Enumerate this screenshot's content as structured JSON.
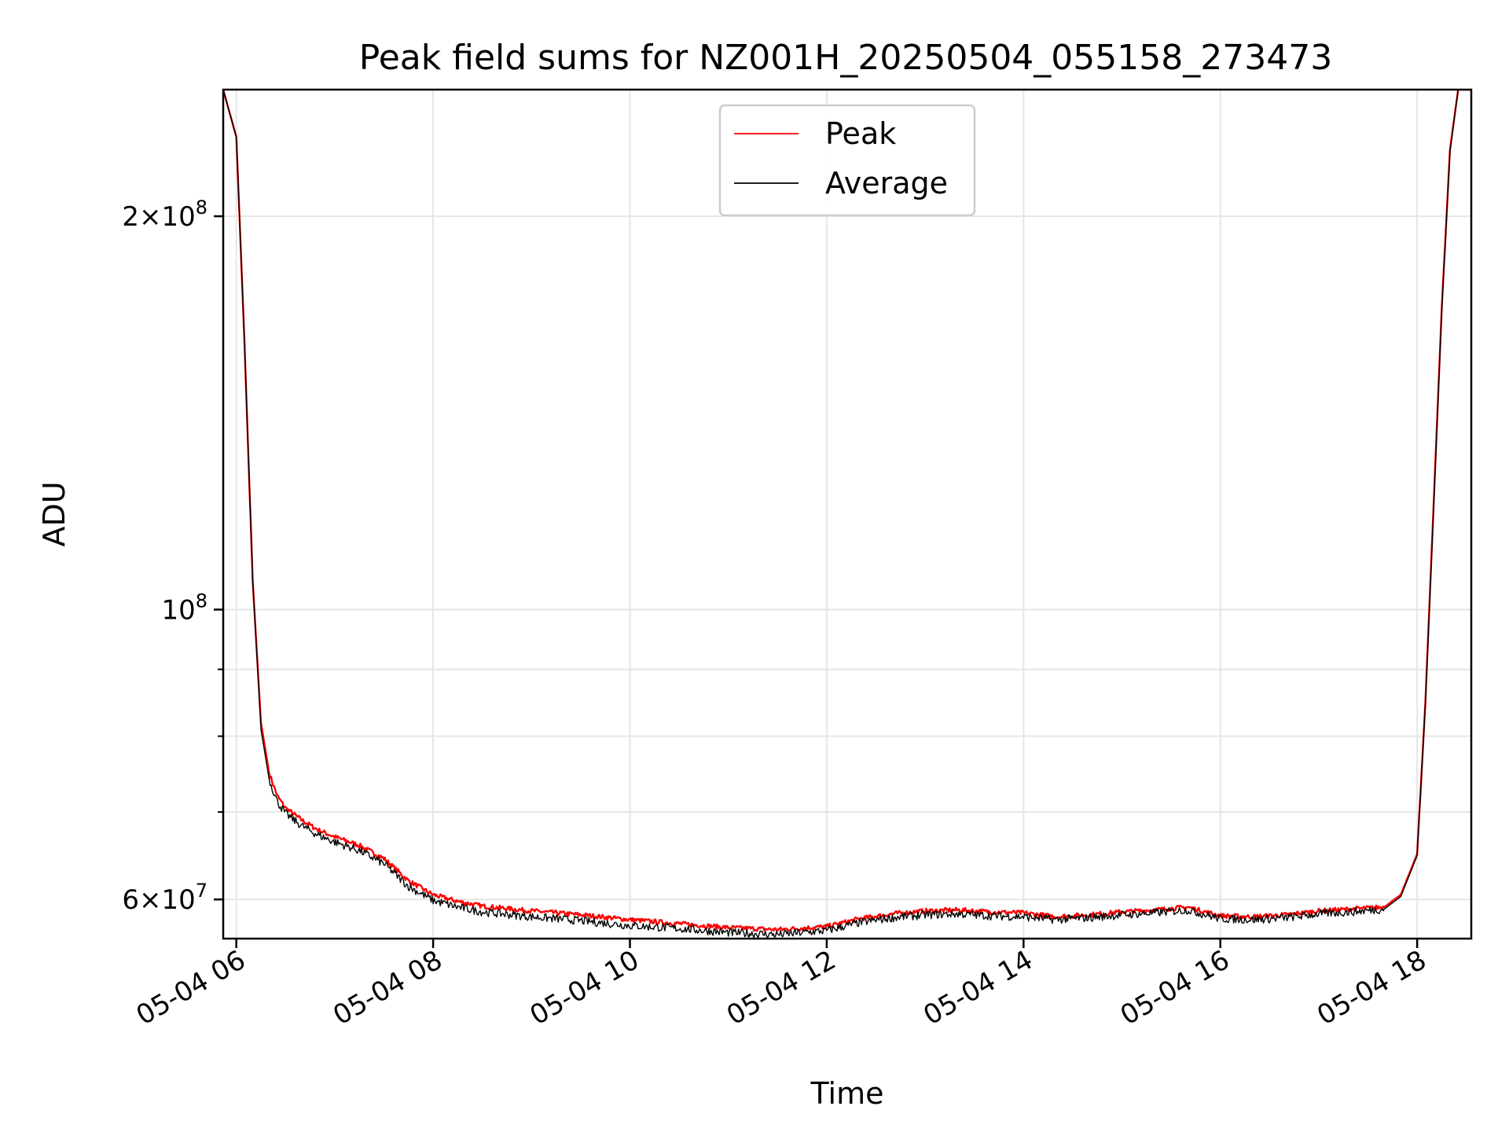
{
  "chart_data": {
    "type": "line",
    "title": "Peak field sums for NZ001H_20250504_055158_273473",
    "xlabel": "Time",
    "ylabel": "ADU",
    "yscale": "log",
    "grid": true,
    "legend_position": "top-center",
    "xlim": [
      "05-04 05:52",
      "05-04 18:33"
    ],
    "ylim": [
      56000000,
      250000000
    ],
    "x_ticks": [
      "05-04 06",
      "05-04 08",
      "05-04 10",
      "05-04 12",
      "05-04 14",
      "05-04 16",
      "05-04 18"
    ],
    "y_tick_labels": [
      {
        "value": 200000000,
        "mantissa": "2",
        "exponent": "8"
      },
      {
        "value": 100000000,
        "mantissa": "",
        "exponent": "8"
      },
      {
        "value": 60000000,
        "mantissa": "6",
        "exponent": "7"
      }
    ],
    "y_minor_ticks": [
      70000000,
      80000000,
      90000000
    ],
    "x": [
      "05-04 05:52",
      "05-04 06:00",
      "05-04 06:05",
      "05-04 06:10",
      "05-04 06:15",
      "05-04 06:20",
      "05-04 06:25",
      "05-04 06:30",
      "05-04 06:40",
      "05-04 06:50",
      "05-04 07:00",
      "05-04 07:15",
      "05-04 07:30",
      "05-04 07:45",
      "05-04 08:00",
      "05-04 08:15",
      "05-04 08:30",
      "05-04 09:00",
      "05-04 09:30",
      "05-04 10:00",
      "05-04 10:30",
      "05-04 11:00",
      "05-04 11:30",
      "05-04 12:00",
      "05-04 12:20",
      "05-04 12:40",
      "05-04 13:00",
      "05-04 13:20",
      "05-04 13:40",
      "05-04 14:00",
      "05-04 14:20",
      "05-04 14:40",
      "05-04 15:00",
      "05-04 15:20",
      "05-04 15:40",
      "05-04 16:00",
      "05-04 16:20",
      "05-04 16:40",
      "05-04 17:00",
      "05-04 17:20",
      "05-04 17:40",
      "05-04 17:50",
      "05-04 18:00",
      "05-04 18:05",
      "05-04 18:10",
      "05-04 18:15",
      "05-04 18:20",
      "05-04 18:25",
      "05-04 18:33"
    ],
    "series": [
      {
        "name": "Peak",
        "color": "#ff0000",
        "values": [
          250000000,
          230000000,
          160000000,
          105000000,
          82000000,
          75000000,
          72000000,
          70500000,
          69000000,
          67800000,
          67000000,
          66000000,
          64500000,
          62000000,
          60500000,
          59800000,
          59300000,
          58800000,
          58400000,
          57900000,
          57500000,
          57100000,
          56900000,
          57200000,
          58000000,
          58500000,
          58800000,
          58900000,
          58700000,
          58600000,
          58200000,
          58400000,
          58700000,
          58900000,
          59200000,
          58300000,
          58200000,
          58400000,
          58800000,
          59000000,
          59200000,
          60500000,
          65000000,
          85000000,
          120000000,
          170000000,
          225000000,
          250000000,
          250000000
        ]
      },
      {
        "name": "Average",
        "color": "#000000",
        "values": [
          250000000,
          230000000,
          160000000,
          105000000,
          81000000,
          74200000,
          71300000,
          69800000,
          68300000,
          67200000,
          66400000,
          65400000,
          63900000,
          61400000,
          59900000,
          59200000,
          58700000,
          58200000,
          57800000,
          57300000,
          57000000,
          56600000,
          56400000,
          56800000,
          57600000,
          58100000,
          58400000,
          58500000,
          58300000,
          58200000,
          57900000,
          58100000,
          58400000,
          58600000,
          58900000,
          58000000,
          57900000,
          58100000,
          58500000,
          58700000,
          59000000,
          60300000,
          64800000,
          84500000,
          119000000,
          169000000,
          224000000,
          250000000,
          250000000
        ]
      }
    ]
  }
}
